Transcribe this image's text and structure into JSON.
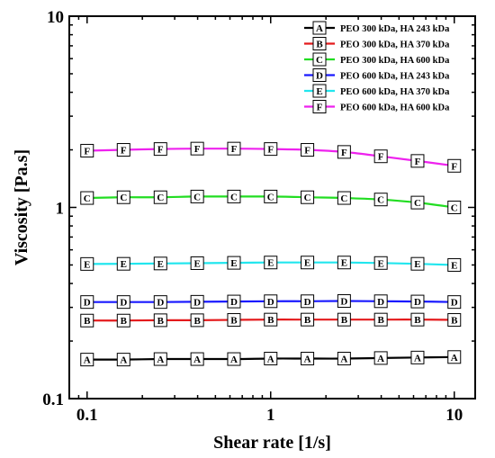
{
  "chart_data": {
    "type": "line",
    "title": "",
    "xlabel": "Shear rate [1/s]",
    "ylabel": "Viscosity [Pa.s]",
    "x_scale": "log",
    "y_scale": "log",
    "xlim": [
      0.08,
      13
    ],
    "ylim": [
      0.1,
      10
    ],
    "x_ticks": [
      {
        "value": 0.1,
        "label": "0.1"
      },
      {
        "value": 1,
        "label": "1"
      },
      {
        "value": 10,
        "label": "10"
      }
    ],
    "y_ticks": [
      {
        "value": 0.1,
        "label": "0.1"
      },
      {
        "value": 1,
        "label": "1"
      },
      {
        "value": 10,
        "label": "10"
      }
    ],
    "grid": false,
    "legend_position": "top-right",
    "x": [
      0.1,
      0.158,
      0.251,
      0.398,
      0.631,
      1,
      1.585,
      2.512,
      3.981,
      6.31,
      10
    ],
    "series": [
      {
        "marker": "A",
        "name": "PEO 300 kDa, HA 243 kDa",
        "color": "#000000",
        "values": [
          0.16,
          0.16,
          0.161,
          0.161,
          0.161,
          0.162,
          0.162,
          0.162,
          0.163,
          0.164,
          0.165
        ]
      },
      {
        "marker": "B",
        "name": "PEO 300 kDa, HA 370 kDa",
        "color": "#e41a1c",
        "values": [
          0.256,
          0.256,
          0.257,
          0.257,
          0.258,
          0.259,
          0.259,
          0.259,
          0.259,
          0.259,
          0.258
        ]
      },
      {
        "marker": "C",
        "name": "PEO 300 kDa, HA 600 kDa",
        "color": "#22dd22",
        "values": [
          1.12,
          1.13,
          1.13,
          1.14,
          1.14,
          1.14,
          1.13,
          1.12,
          1.1,
          1.06,
          1.0
        ]
      },
      {
        "marker": "D",
        "name": "PEO 600 kDa, HA 243 kDa",
        "color": "#1a1aff",
        "values": [
          0.32,
          0.32,
          0.32,
          0.321,
          0.322,
          0.323,
          0.323,
          0.324,
          0.323,
          0.322,
          0.32
        ]
      },
      {
        "marker": "E",
        "name": "PEO 600 kDa, HA 370 kDa",
        "color": "#22e6ee",
        "values": [
          0.506,
          0.507,
          0.509,
          0.511,
          0.513,
          0.515,
          0.515,
          0.515,
          0.512,
          0.507,
          0.5
        ]
      },
      {
        "marker": "F",
        "name": "PEO 600 kDa, HA 600 kDa",
        "color": "#ee22ee",
        "values": [
          1.98,
          2.0,
          2.02,
          2.03,
          2.03,
          2.02,
          2.0,
          1.95,
          1.85,
          1.75,
          1.65
        ]
      }
    ]
  }
}
